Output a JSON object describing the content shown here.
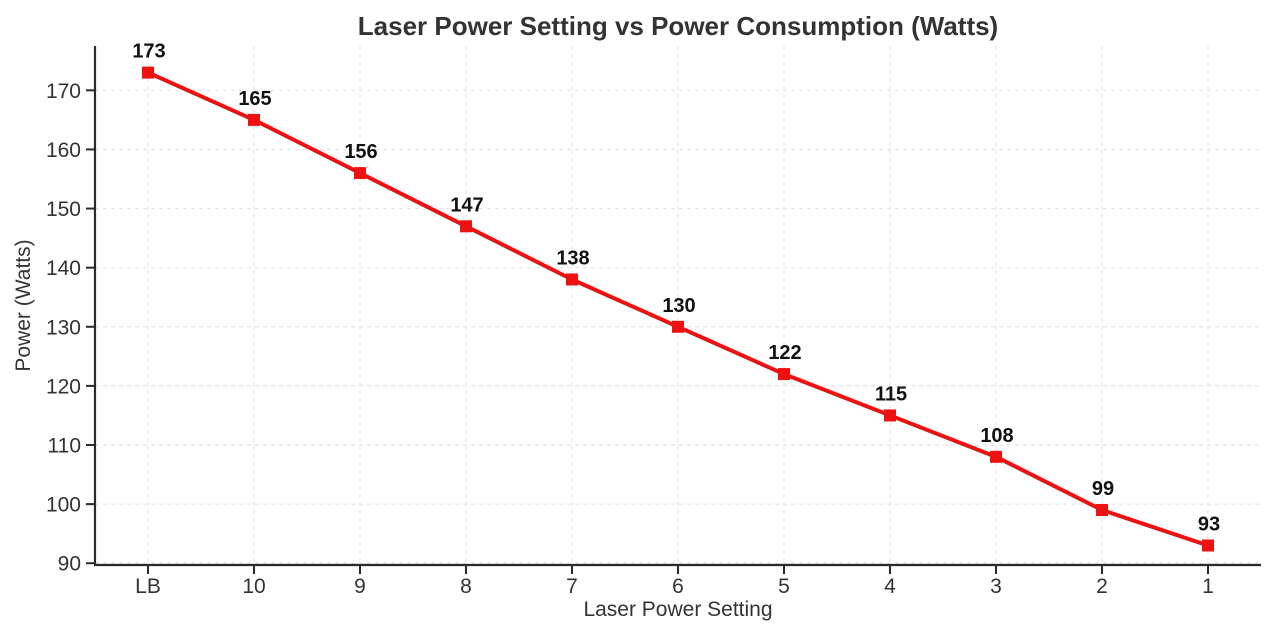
{
  "chart_data": {
    "type": "line",
    "title": "Laser Power Setting vs Power Consumption (Watts)",
    "xlabel": "Laser Power Setting",
    "ylabel": "Power (Watts)",
    "categories": [
      "LB",
      "10",
      "9",
      "8",
      "7",
      "6",
      "5",
      "4",
      "3",
      "2",
      "1"
    ],
    "values": [
      173,
      165,
      156,
      147,
      138,
      130,
      122,
      115,
      108,
      99,
      93
    ],
    "yticks": [
      90,
      100,
      110,
      120,
      130,
      140,
      150,
      160,
      170
    ],
    "ylim": [
      89.7,
      177.5
    ],
    "grid": true,
    "grid_style": "dashed",
    "legend": "none",
    "marker": "square",
    "show_point_labels": true,
    "colors": {
      "line": "#ee1111",
      "marker": "#ee1111",
      "point_label": "#111111",
      "axis_text": "#333333",
      "title_text": "#333333",
      "grid": "#e4e4e4",
      "spine": "#2b2b2b",
      "background": "#ffffff"
    }
  }
}
